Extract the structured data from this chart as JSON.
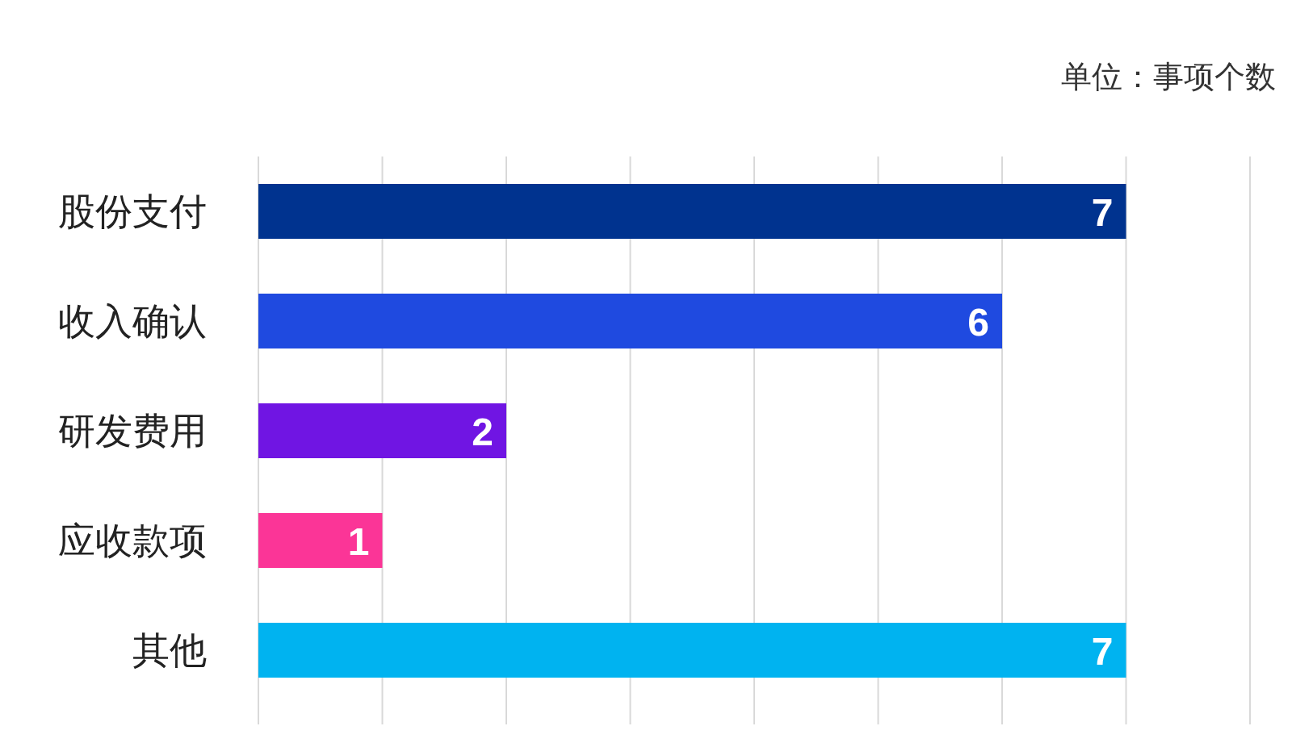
{
  "chart_data": {
    "type": "bar",
    "orientation": "horizontal",
    "categories": [
      "股份支付",
      "收入确认",
      "研发费用",
      "应收款项",
      "其他"
    ],
    "values": [
      7,
      6,
      2,
      1,
      7
    ],
    "colors": [
      "#00338f",
      "#1f4ae0",
      "#7015e3",
      "#fb3597",
      "#00b3f0"
    ],
    "xlim": [
      0,
      8
    ],
    "xticks": [
      {
        "value": 0,
        "label": null
      },
      {
        "value": 1,
        "label": null
      },
      {
        "value": 2,
        "label": null
      },
      {
        "value": 3,
        "label": null
      },
      {
        "value": 4,
        "label": null
      },
      {
        "value": 5,
        "label": null
      },
      {
        "value": 6,
        "label": null
      },
      {
        "value": 7,
        "label": null
      },
      {
        "value": 8,
        "label": null
      }
    ],
    "tick_labels": "y",
    "grid": "x",
    "data_labels": true,
    "annotations": [
      "单位：事项个数"
    ]
  }
}
